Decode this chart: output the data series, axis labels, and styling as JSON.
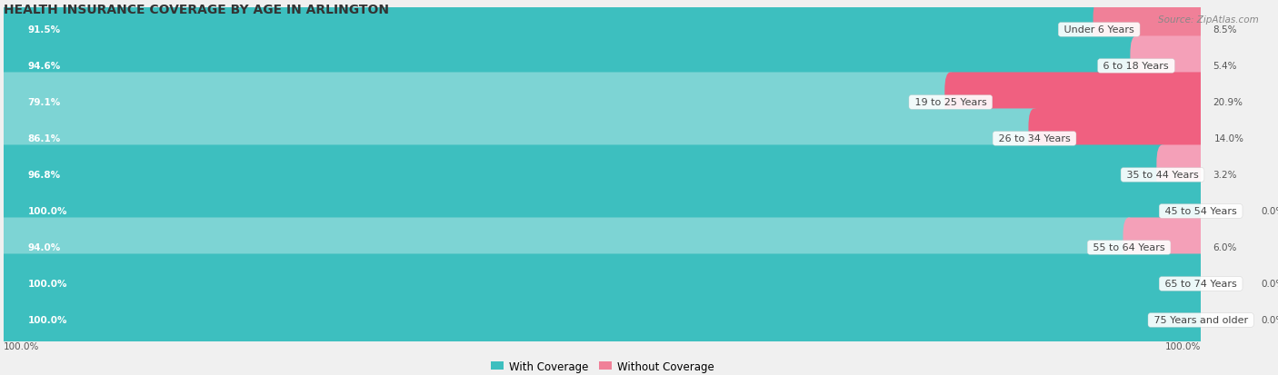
{
  "title": "HEALTH INSURANCE COVERAGE BY AGE IN ARLINGTON",
  "source": "Source: ZipAtlas.com",
  "categories": [
    "Under 6 Years",
    "6 to 18 Years",
    "19 to 25 Years",
    "26 to 34 Years",
    "35 to 44 Years",
    "45 to 54 Years",
    "55 to 64 Years",
    "65 to 74 Years",
    "75 Years and older"
  ],
  "with_coverage": [
    91.5,
    94.6,
    79.1,
    86.1,
    96.8,
    100.0,
    94.0,
    100.0,
    100.0
  ],
  "without_coverage": [
    8.5,
    5.4,
    20.9,
    14.0,
    3.2,
    0.0,
    6.0,
    0.0,
    0.0
  ],
  "color_with": "#3DBFBF",
  "color_without_dark": "#F06080",
  "color_without_light": "#F4A0B8",
  "title_fontsize": 10,
  "label_fontsize": 8,
  "bar_value_fontsize": 7.5,
  "legend_fontsize": 8.5,
  "source_fontsize": 7.5
}
